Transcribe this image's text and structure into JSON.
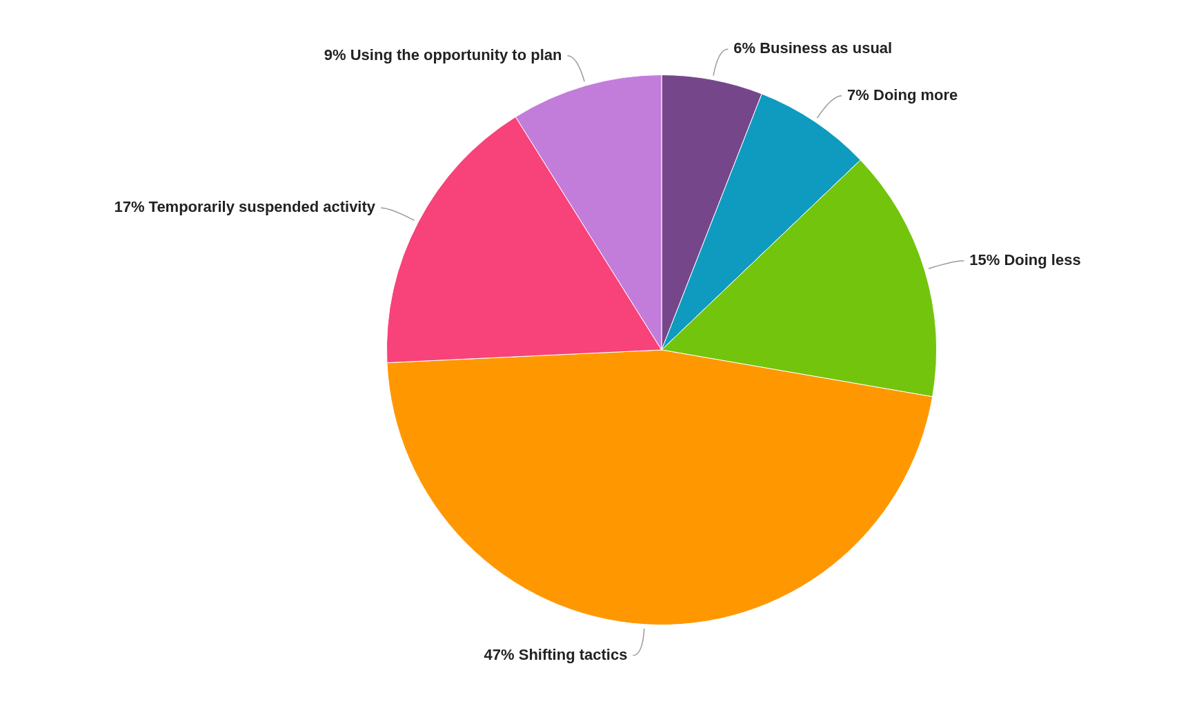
{
  "chart_data": {
    "type": "pie",
    "categories": [
      "6% Business as usual",
      "7% Doing more",
      "15% Doing less",
      "47% Shifting tactics",
      "17% Temporarily suspended activity",
      "9% Using the opportunity to plan"
    ],
    "values": [
      6,
      7,
      15,
      47,
      17,
      9
    ],
    "colors": [
      "#76468a",
      "#0e9bbf",
      "#72c50c",
      "#ff9800",
      "#f8427a",
      "#c27ddb"
    ],
    "legend": false
  }
}
